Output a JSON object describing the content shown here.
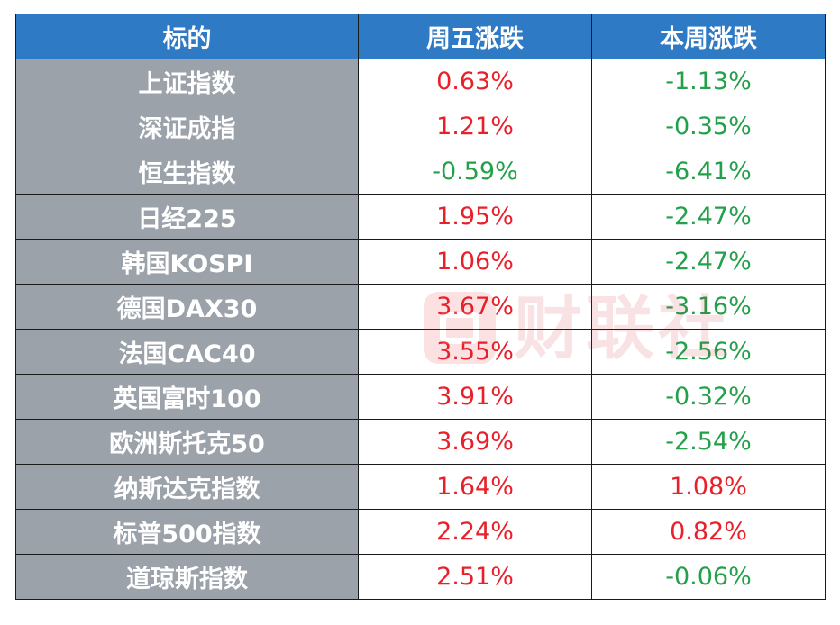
{
  "table": {
    "headers": [
      "标的",
      "周五涨跌",
      "本周涨跌"
    ],
    "rows": [
      {
        "name": "上证指数",
        "fri": "0.63%",
        "fri_dir": "up",
        "week": "-1.13%",
        "week_dir": "down"
      },
      {
        "name": "深证成指",
        "fri": "1.21%",
        "fri_dir": "up",
        "week": "-0.35%",
        "week_dir": "down"
      },
      {
        "name": "恒生指数",
        "fri": "-0.59%",
        "fri_dir": "down",
        "week": "-6.41%",
        "week_dir": "down"
      },
      {
        "name": "日经225",
        "fri": "1.95%",
        "fri_dir": "up",
        "week": "-2.47%",
        "week_dir": "down"
      },
      {
        "name": "韩国KOSPI",
        "fri": "1.06%",
        "fri_dir": "up",
        "week": "-2.47%",
        "week_dir": "down"
      },
      {
        "name": "德国DAX30",
        "fri": "3.67%",
        "fri_dir": "up",
        "week": "-3.16%",
        "week_dir": "down"
      },
      {
        "name": "法国CAC40",
        "fri": "3.55%",
        "fri_dir": "up",
        "week": "-2.56%",
        "week_dir": "down"
      },
      {
        "name": "英国富时100",
        "fri": "3.91%",
        "fri_dir": "up",
        "week": "-0.32%",
        "week_dir": "down"
      },
      {
        "name": "欧洲斯托克50",
        "fri": "3.69%",
        "fri_dir": "up",
        "week": "-2.54%",
        "week_dir": "down"
      },
      {
        "name": "纳斯达克指数",
        "fri": "1.64%",
        "fri_dir": "up",
        "week": "1.08%",
        "week_dir": "up"
      },
      {
        "name": "标普500指数",
        "fri": "2.24%",
        "fri_dir": "up",
        "week": "0.82%",
        "week_dir": "up"
      },
      {
        "name": "道琼斯指数",
        "fri": "2.51%",
        "fri_dir": "up",
        "week": "-0.06%",
        "week_dir": "down"
      }
    ]
  },
  "colors": {
    "header_bg": "#2f7ac4",
    "name_bg": "#9ca2aa",
    "up": "#e8202a",
    "down": "#23a04a"
  },
  "watermark": {
    "text": "财联社",
    "icon": "cls-logo-icon"
  }
}
